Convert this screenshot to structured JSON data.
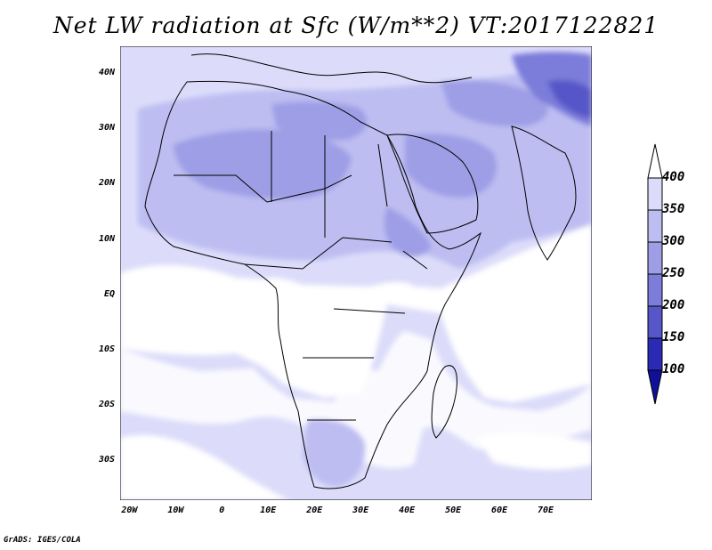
{
  "title": "Net LW radiation at Sfc (W/m**2) VT:2017122821",
  "credit": "GrADS: IGES/COLA",
  "map": {
    "lat_range": [
      -37,
      45
    ],
    "lon_range": [
      -22,
      80
    ],
    "lat_ticks": [
      {
        "value": 40,
        "label": "40N"
      },
      {
        "value": 30,
        "label": "30N"
      },
      {
        "value": 20,
        "label": "20N"
      },
      {
        "value": 10,
        "label": "10N"
      },
      {
        "value": 0,
        "label": "EQ"
      },
      {
        "value": -10,
        "label": "10S"
      },
      {
        "value": -20,
        "label": "20S"
      },
      {
        "value": -30,
        "label": "30S"
      }
    ],
    "lon_ticks": [
      {
        "value": -20,
        "label": "20W"
      },
      {
        "value": -10,
        "label": "10W"
      },
      {
        "value": 0,
        "label": "0"
      },
      {
        "value": 10,
        "label": "10E"
      },
      {
        "value": 20,
        "label": "20E"
      },
      {
        "value": 30,
        "label": "30E"
      },
      {
        "value": 40,
        "label": "40E"
      },
      {
        "value": 50,
        "label": "50E"
      },
      {
        "value": 60,
        "label": "60E"
      },
      {
        "value": 70,
        "label": "70E"
      }
    ]
  },
  "colorbar": {
    "labels": [
      "400",
      "350",
      "300",
      "250",
      "200",
      "150",
      "100"
    ],
    "colors": [
      "#ffffff",
      "#dcdcfa",
      "#bdbdf2",
      "#9e9ee6",
      "#7c7cda",
      "#5656c8",
      "#2a2ab4",
      "#0f0f9a"
    ]
  }
}
